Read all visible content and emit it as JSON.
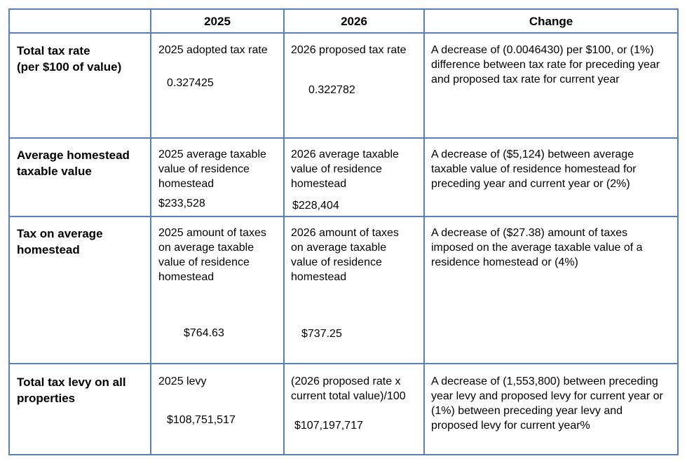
{
  "header": {
    "col1": "2025",
    "col2": "2026",
    "col3": "Change"
  },
  "rows": [
    {
      "label": "Total tax rate\n(per $100 of value)",
      "c1_desc": "2025 adopted tax rate",
      "c1_value": "0.327425",
      "c2_desc": "2026 proposed tax rate",
      "c2_value": "0.322782",
      "change": "A decrease of (0.0046430) per $100, or (1%) difference between tax rate for preceding year and proposed tax rate for current year"
    },
    {
      "label": "Average homestead taxable value",
      "c1_desc": "2025 average taxable value of residence homestead",
      "c1_value": "$233,528",
      "c2_desc": "2026 average taxable value of residence homestead",
      "c2_value": "$228,404",
      "change": "A decrease of ($5,124) between average taxable value of residence homestead for preceding year and current year or (2%)"
    },
    {
      "label": "Tax on average homestead",
      "c1_desc": "2025 amount of taxes on average taxable value of residence homestead",
      "c1_value": "$764.63",
      "c2_desc": "2026 amount of taxes on average taxable value of residence homestead",
      "c2_value": "$737.25",
      "change": "A decrease of ($27.38) amount of taxes imposed on the average taxable value of a residence homestead or (4%)"
    },
    {
      "label": "Total tax levy on all properties",
      "c1_desc": "2025 levy",
      "c1_value": "$108,751,517",
      "c2_desc": "(2026 proposed rate x current total value)/100",
      "c2_value": "$107,197,717",
      "change": "A decrease of (1,553,800) between preceding year levy and proposed levy for current year or (1%) between preceding year levy and proposed levy for current year%"
    }
  ]
}
